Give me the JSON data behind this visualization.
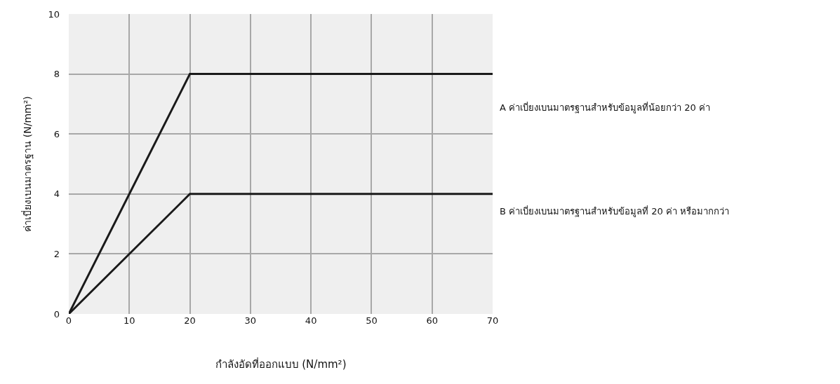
{
  "chart_data": {
    "type": "line",
    "xlabel": "กำลังอัดที่ออกแบบ (N/mm²)",
    "ylabel": "ค่าเบี่ยงเบนมาตรฐาน (N/mm²)",
    "x": [
      0,
      20,
      70
    ],
    "series": [
      {
        "name": "A ค่าเบี่ยงเบนมาตรฐานสำหรับข้อมูลที่น้อยกว่า 20 ค่า",
        "color": "#1a1a1a",
        "values": [
          0,
          8,
          8
        ]
      },
      {
        "name": "B ค่าเบี่ยงเบนมาตรฐานสำหรับข้อมูลที่ 20 ค่า หรือมากกว่า",
        "color": "#1a1a1a",
        "values": [
          0,
          4,
          4
        ]
      }
    ],
    "xlim": [
      0,
      70
    ],
    "xticks": [
      0,
      10,
      20,
      30,
      40,
      50,
      60,
      70
    ],
    "ylim": [
      0,
      10
    ],
    "yticks": [
      0,
      2,
      4,
      6,
      8,
      10
    ],
    "grid": true,
    "legend": false,
    "marker": "none",
    "line_style": "solid"
  }
}
